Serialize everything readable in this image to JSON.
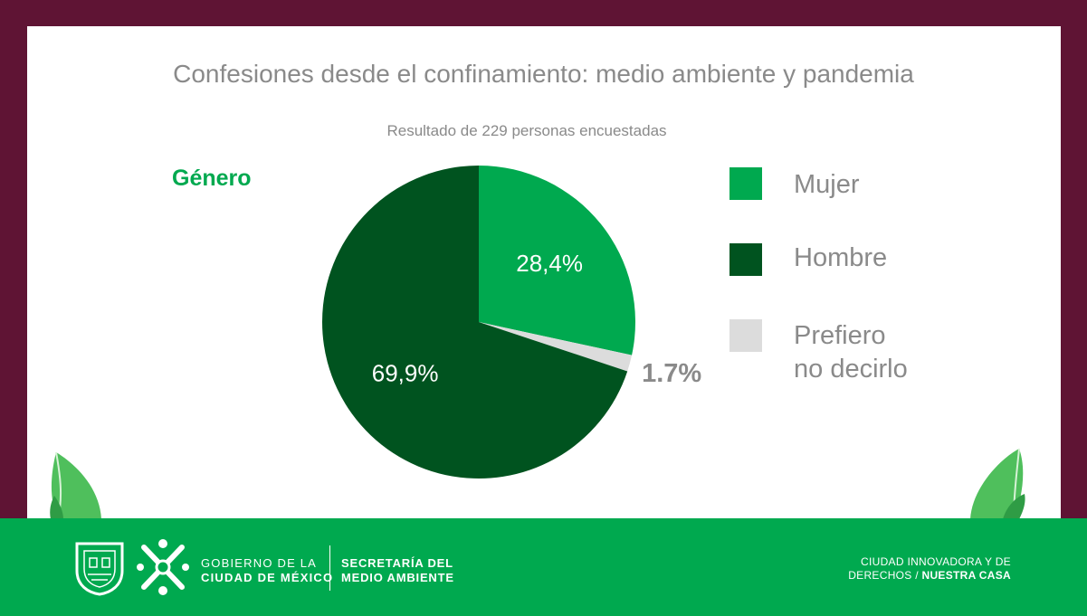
{
  "chart_data": {
    "type": "pie",
    "title": "Confesiones desde el confinamiento: medio ambiente y pandemia",
    "subtitle": "Resultado de 229 personas encuestadas",
    "section_label": "Género",
    "slices": [
      {
        "label": "Mujer",
        "value": 28.4,
        "value_text": "28,4%",
        "color": "#00a94f",
        "label_color": "#ffffff"
      },
      {
        "label": "Prefiero no decirlo",
        "value": 1.7,
        "value_text": "1.7%",
        "color": "#dcdcdc",
        "label_color": "#8a8a8a"
      },
      {
        "label": "Hombre",
        "value": 69.9,
        "value_text": "69,9%",
        "color": "#00531f",
        "label_color": "#ffffff"
      }
    ],
    "legend": [
      {
        "label_line1": "Mujer",
        "label_line2": "",
        "color": "#00a94f"
      },
      {
        "label_line1": "Hombre",
        "label_line2": "",
        "color": "#00531f"
      },
      {
        "label_line1": "Prefiero",
        "label_line2": "no decirlo",
        "color": "#dcdcdc"
      }
    ],
    "legend_placement": "right"
  },
  "footer": {
    "gov_line1": "GOBIERNO DE LA",
    "gov_line2": "CIUDAD DE MÉXICO",
    "secretaria_line1": "SECRETARÍA DEL",
    "secretaria_line2": "MEDIO AMBIENTE",
    "motto_line1": "CIUDAD INNOVADORA Y DE",
    "motto_line2a": "DERECHOS / ",
    "motto_line2b": "NUESTRA CASA"
  },
  "colors": {
    "frame": "#5f1434",
    "brand_green": "#00a94f",
    "dark_green": "#00531f",
    "text_gray": "#8a8a8a"
  },
  "icons": [
    "leaf-left-icon",
    "leaf-right-icon",
    "cdmx-shield-icon",
    "cdmx-logo-icon"
  ]
}
